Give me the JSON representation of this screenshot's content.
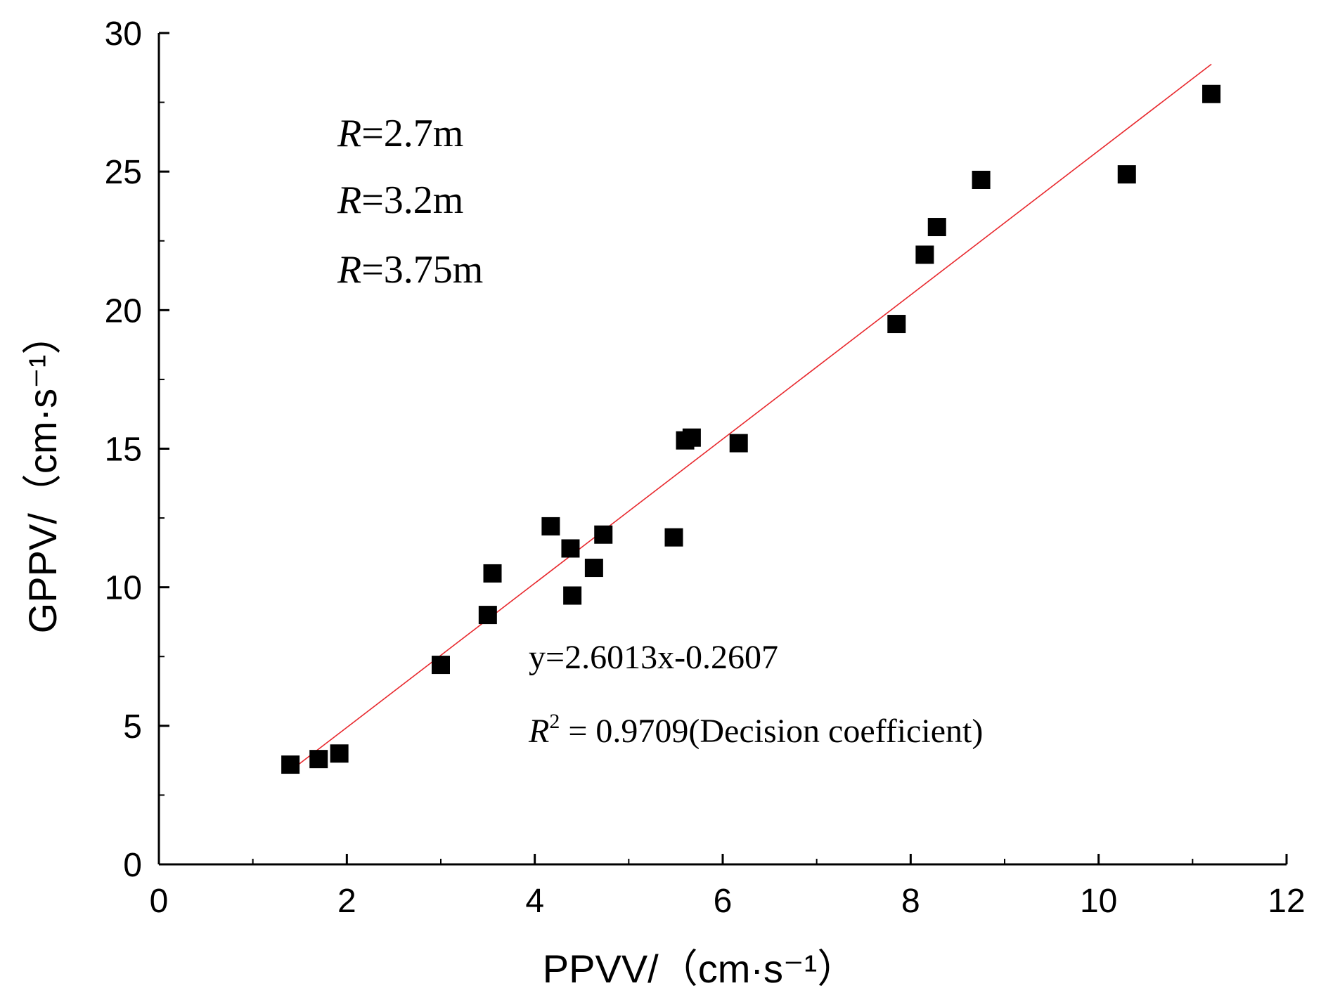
{
  "chart_data": {
    "type": "scatter",
    "title": "",
    "xlabel": "PPVV/（cm·s⁻¹）",
    "ylabel": "GPPV/（cm·s⁻¹）",
    "xlim": [
      0,
      12
    ],
    "ylim": [
      0,
      30
    ],
    "x_ticks": [
      0,
      2,
      4,
      6,
      8,
      10,
      12
    ],
    "x_tick_labels": [
      "0",
      "2",
      "4",
      "6",
      "8",
      "10",
      "12"
    ],
    "y_ticks": [
      0,
      5,
      10,
      15,
      20,
      25,
      30
    ],
    "y_tick_labels": [
      "0",
      "5",
      "10",
      "15",
      "20",
      "25",
      "30"
    ],
    "grid": false,
    "legend": {
      "placement": "top-left",
      "entries": [
        {
          "var": "R",
          "text": "=2.7m"
        },
        {
          "var": "R",
          "text": "=3.2m"
        },
        {
          "var": "R",
          "text": "=3.75m"
        }
      ]
    },
    "series": [
      {
        "name": "data",
        "marker": "square",
        "color": "#000000",
        "x": [
          1.4,
          1.7,
          1.92,
          3.0,
          3.5,
          3.55,
          4.17,
          4.38,
          4.4,
          4.63,
          4.73,
          5.48,
          5.6,
          5.67,
          6.17,
          7.85,
          8.15,
          8.28,
          8.75,
          10.3,
          11.2
        ],
        "y": [
          3.6,
          3.8,
          4.0,
          7.2,
          9.0,
          10.5,
          12.2,
          11.4,
          9.7,
          10.7,
          11.9,
          11.8,
          15.3,
          15.4,
          15.2,
          19.5,
          22.0,
          23.0,
          24.7,
          24.9,
          27.8
        ]
      }
    ],
    "fit": {
      "name": "linear fit",
      "color": "#e8282d",
      "slope": 2.6013,
      "intercept": -0.2607,
      "x_range": [
        1.4,
        11.2
      ],
      "equation": "y=2.6013x-0.2607",
      "r2_label": "R",
      "r2_exponent": "2",
      "r2_text": " = 0.9709(Decision coefficient)"
    }
  }
}
